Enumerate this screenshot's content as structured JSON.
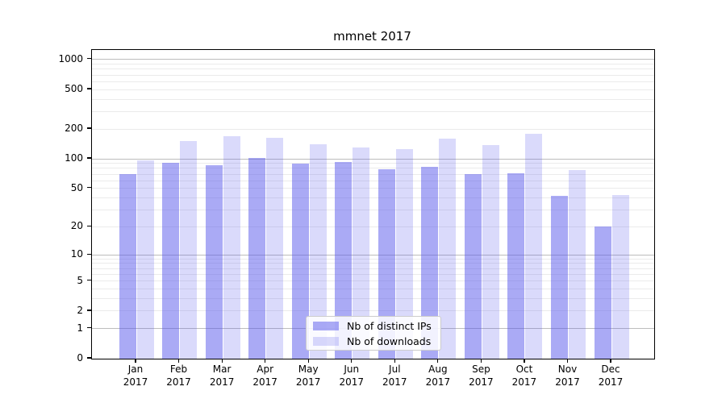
{
  "chart_data": {
    "type": "bar",
    "title": "mmnet 2017",
    "categories": [
      "Jan 2017",
      "Feb 2017",
      "Mar 2017",
      "Apr 2017",
      "May 2017",
      "Jun 2017",
      "Jul 2017",
      "Aug 2017",
      "Sep 2017",
      "Oct 2017",
      "Nov 2017",
      "Dec 2017"
    ],
    "series": [
      {
        "name": "Nb of distinct IPs",
        "fill": "rgba(85,85,235,0.5)",
        "swatch_hex": "#aaaaf5",
        "values": [
          70,
          92,
          86,
          103,
          90,
          93,
          79,
          83,
          70,
          72,
          42,
          20
        ]
      },
      {
        "name": "Nb of downloads",
        "fill": "rgba(85,85,235,0.22)",
        "swatch_hex": "#d9d9fa",
        "values": [
          97,
          152,
          168,
          163,
          140,
          131,
          125,
          160,
          137,
          180,
          77,
          43
        ]
      }
    ],
    "xlabel": "",
    "ylabel": "",
    "yscale": "log1p",
    "ylim": [
      0,
      1250
    ],
    "yticks": [
      1000,
      500,
      200,
      100,
      50,
      20,
      10,
      5,
      2,
      1,
      0
    ],
    "grid": {
      "major_values": [
        1,
        10,
        100,
        1000
      ],
      "major_color": "#bdbdbd",
      "minor_color": "#ebebeb"
    },
    "legend_position": "lower center"
  }
}
